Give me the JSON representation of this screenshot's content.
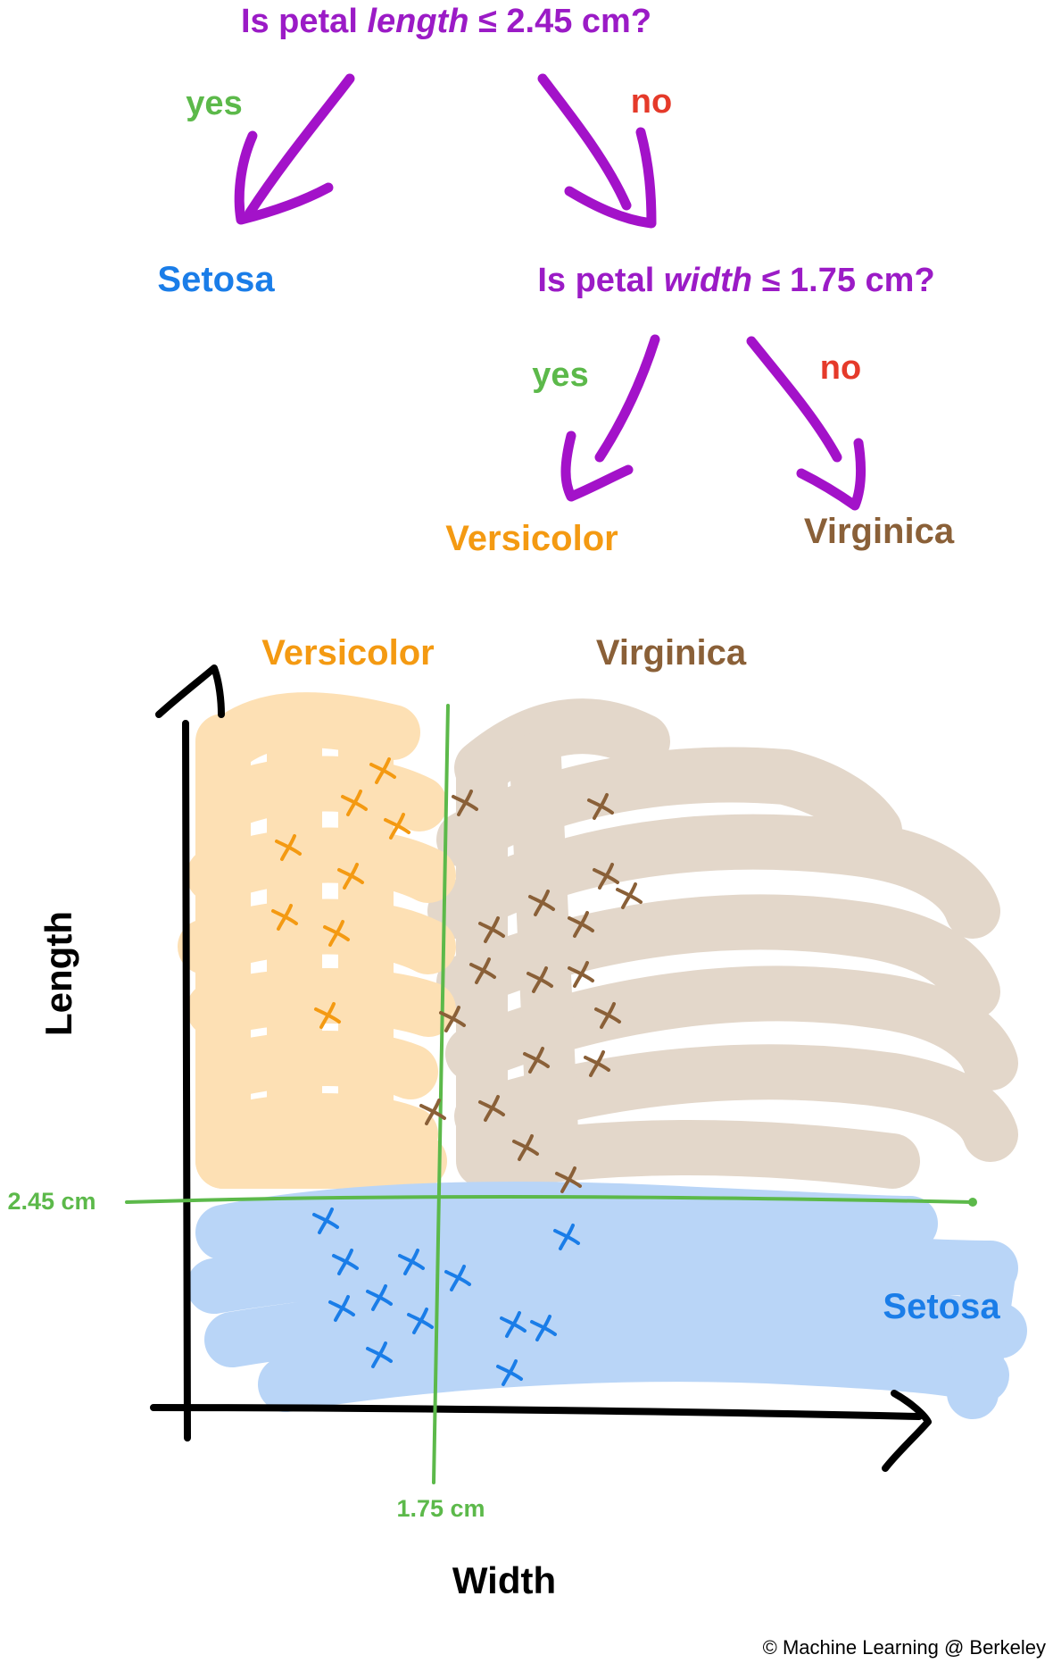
{
  "tree": {
    "root_question": {
      "prefix": "Is petal ",
      "feature": "length",
      "suffix": " ≤ 2.45 cm?"
    },
    "root_yes_label": "yes",
    "root_no_label": "no",
    "root_yes_leaf": "Setosa",
    "second_question": {
      "prefix": "Is petal ",
      "feature": "width",
      "suffix": " ≤ 1.75 cm?"
    },
    "second_yes_label": "yes",
    "second_no_label": "no",
    "second_yes_leaf": "Versicolor",
    "second_no_leaf": "Virginica"
  },
  "plot": {
    "region_labels": {
      "versicolor": "Versicolor",
      "virginica": "Virginica",
      "setosa": "Setosa"
    },
    "x_axis_title": "Width",
    "y_axis_title": "Length",
    "length_threshold_label": "2.45 cm",
    "width_threshold_label": "1.75 cm"
  },
  "colors": {
    "question": "#9b1bc6",
    "yes": "#5cb94a",
    "no": "#e53a2a",
    "setosa": "#1a7de8",
    "versicolor": "#f49a12",
    "virginica": "#8a6038",
    "setosa_region": "#b9d5f7",
    "versicolor_region": "#fde0b4",
    "virginica_region": "#e3d7ca",
    "threshold_line": "#5cb94a"
  },
  "copyright": "© Machine Learning @ Berkeley"
}
